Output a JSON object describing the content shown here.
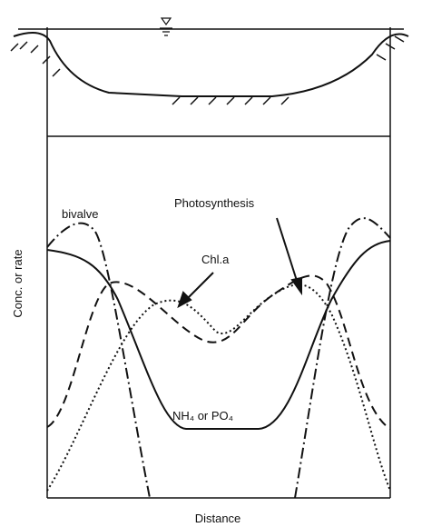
{
  "labels": {
    "bivalve": "bivalve",
    "photosynthesis": "Photosynthesis",
    "chla": "Chl.a",
    "nutrient": "NH₄ or PO₄"
  },
  "axes": {
    "y_label": "Conc. or rate",
    "x_label": "Distance"
  }
}
